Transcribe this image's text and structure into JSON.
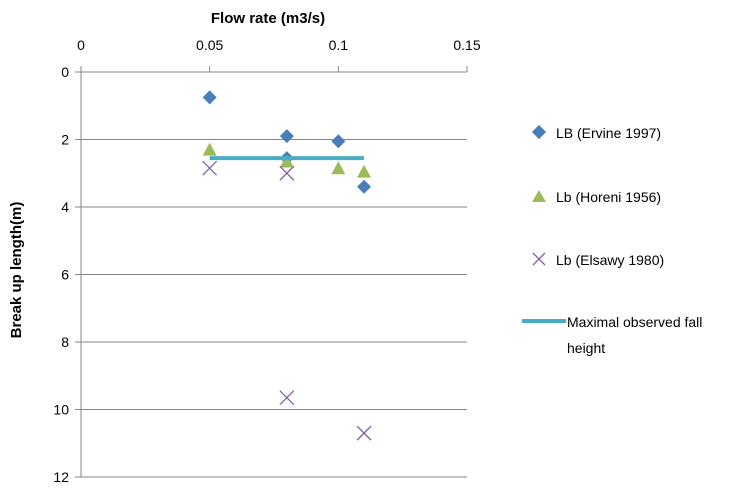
{
  "chart_data": {
    "type": "scatter",
    "xlabel": "Flow rate (m3/s)",
    "ylabel": "Break up length(m)",
    "xlim": [
      0,
      0.15
    ],
    "ylim": [
      0,
      12
    ],
    "x_axis_position": "top",
    "y_axis_reversed": true,
    "grid": "horizontal",
    "legend_position": "right",
    "x_ticks": [
      "0",
      "0.05",
      "0.1",
      "0.15"
    ],
    "y_ticks": [
      "0",
      "2",
      "4",
      "6",
      "8",
      "10",
      "12"
    ],
    "series": [
      {
        "name": "LB (Ervine 1997)",
        "marker": "diamond",
        "color": "#4A7EBB",
        "points": [
          [
            0.05,
            0.75
          ],
          [
            0.08,
            1.9
          ],
          [
            0.08,
            2.55
          ],
          [
            0.1,
            2.05
          ],
          [
            0.11,
            3.4
          ]
        ]
      },
      {
        "name": "Lb (Horeni 1956)",
        "marker": "triangle",
        "color": "#9BBB59",
        "points": [
          [
            0.05,
            2.3
          ],
          [
            0.08,
            2.65
          ],
          [
            0.1,
            2.85
          ],
          [
            0.11,
            2.95
          ]
        ]
      },
      {
        "name": "Lb (Elsawy 1980)",
        "marker": "x",
        "color": "#8064A2",
        "points": [
          [
            0.05,
            2.85
          ],
          [
            0.08,
            3.0
          ],
          [
            0.08,
            9.65
          ],
          [
            0.11,
            10.7
          ]
        ]
      },
      {
        "name": "Maximal observed fall height",
        "marker": "line",
        "color": "#4BACC6",
        "points": [
          [
            0.05,
            2.55
          ],
          [
            0.11,
            2.55
          ]
        ]
      }
    ]
  },
  "legend": {
    "items": [
      {
        "label": "LB (Ervine 1997)",
        "icon": "diamond"
      },
      {
        "label": "Lb (Horeni 1956)",
        "icon": "triangle"
      },
      {
        "label": "Lb (Elsawy 1980)",
        "icon": "x"
      },
      {
        "label_line1": "Maximal observed fall",
        "label_line2": "height",
        "icon": "line"
      }
    ]
  }
}
